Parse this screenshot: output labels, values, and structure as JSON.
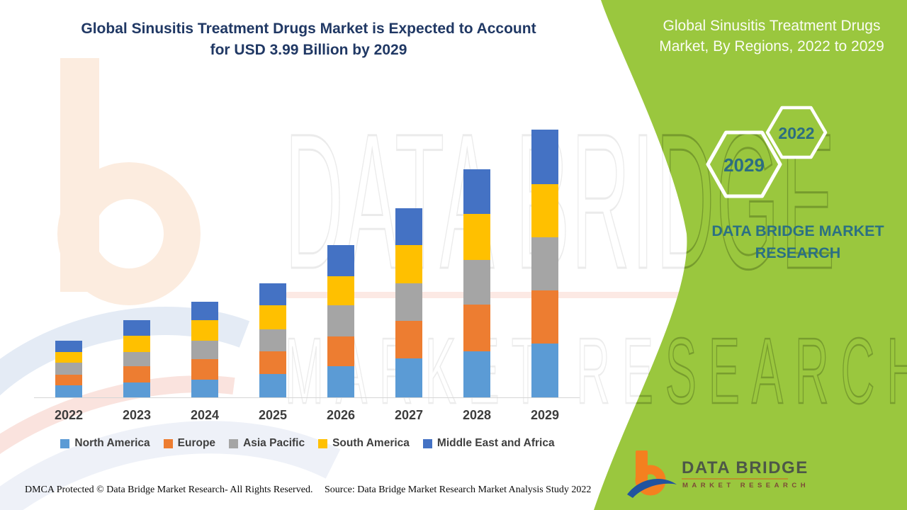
{
  "header": {
    "title_line1": "Global Sinusitis Treatment Drugs Market is Expected to Account",
    "title_line2": "for USD 3.99 Billion by 2029"
  },
  "side_panel": {
    "title_line1": "Global Sinusitis Treatment Drugs",
    "title_line2": "Market, By Regions, 2022 to 2029",
    "hexagon_back_label": "2029",
    "hexagon_front_label": "2022",
    "brand_line1": "DATA BRIDGE MARKET",
    "brand_line2": "RESEARCH",
    "panel_color": "#9AC73E",
    "accent_text_color": "#2C6D81"
  },
  "watermark": {
    "line1": "DATA BRIDGE",
    "line2": "MARKET RESEARCH"
  },
  "logo": {
    "title": "DATA BRIDGE",
    "subtitle": "MARKET RESEARCH",
    "glyph": "dbmr-b-swoosh-icon",
    "orange": "#F4801F",
    "blue": "#21539F"
  },
  "footer": {
    "left": "DMCA Protected © Data Bridge Market Research- All Rights Reserved.",
    "right": "Source: Data Bridge Market Research Market Analysis Study 2022"
  },
  "chart_data": {
    "type": "bar",
    "stacked": true,
    "title": "Global Sinusitis Treatment Drugs Market, By Regions, 2022 to 2029",
    "unit": "USD Billion",
    "categories": [
      "2022",
      "2023",
      "2024",
      "2025",
      "2026",
      "2027",
      "2028",
      "2029"
    ],
    "series": [
      {
        "name": "North America",
        "color": "#5B9BD5",
        "values": [
          0.18,
          0.22,
          0.26,
          0.35,
          0.46,
          0.58,
          0.69,
          0.8
        ]
      },
      {
        "name": "Europe",
        "color": "#ED7D31",
        "values": [
          0.16,
          0.24,
          0.31,
          0.34,
          0.45,
          0.56,
          0.69,
          0.79
        ]
      },
      {
        "name": "Asia Pacific",
        "color": "#A5A5A5",
        "values": [
          0.18,
          0.22,
          0.27,
          0.32,
          0.46,
          0.56,
          0.67,
          0.8
        ]
      },
      {
        "name": "South America",
        "color": "#FFC000",
        "values": [
          0.16,
          0.24,
          0.31,
          0.36,
          0.44,
          0.57,
          0.68,
          0.79
        ]
      },
      {
        "name": "Middle East and Africa",
        "color": "#4472C4",
        "values": [
          0.17,
          0.23,
          0.28,
          0.33,
          0.46,
          0.55,
          0.67,
          0.81
        ]
      }
    ],
    "totals": [
      0.85,
      1.15,
      1.43,
      1.7,
      2.27,
      2.82,
      3.4,
      3.99
    ],
    "highlight_total": "USD 3.99 Billion by 2029",
    "ylim": [
      0,
      4.2
    ],
    "grid": false,
    "y_axis_visible": false,
    "legend_position": "bottom"
  }
}
